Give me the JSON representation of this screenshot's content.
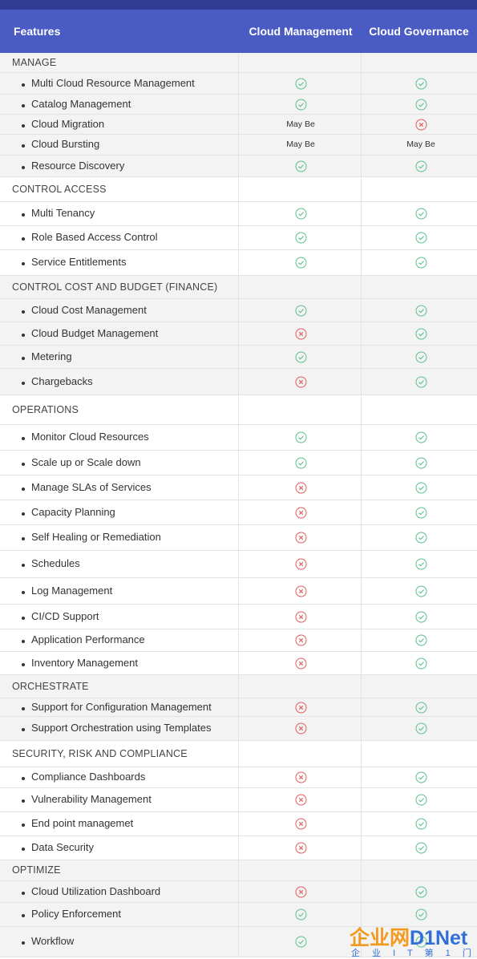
{
  "header": {
    "features": "Features",
    "cloud_management": "Cloud Management",
    "cloud_governance": "Cloud Governance"
  },
  "colors": {
    "header_bg": "#4a5bc3",
    "top_bar": "#2e3c91",
    "check": "#5cc08f",
    "cross": "#e05c5c",
    "section_bg": "#f3f3f3"
  },
  "rows": [
    {
      "type": "section",
      "label": "MANAGE"
    },
    {
      "type": "item",
      "label": "Multi Cloud Resource Management",
      "cm": "check",
      "cg": "check"
    },
    {
      "type": "item",
      "label": "Catalog Management",
      "cm": "check",
      "cg": "check"
    },
    {
      "type": "item",
      "label": "Cloud Migration",
      "cm": "May Be",
      "cg": "cross"
    },
    {
      "type": "item",
      "label": "Cloud Bursting",
      "cm": "May Be",
      "cg": "May Be"
    },
    {
      "type": "item",
      "label": "Resource Discovery",
      "cm": "check",
      "cg": "check"
    },
    {
      "type": "section",
      "label": "CONTROL ACCESS"
    },
    {
      "type": "item",
      "label": "Multi Tenancy",
      "cm": "check",
      "cg": "check"
    },
    {
      "type": "item",
      "label": "Role Based Access Control",
      "cm": "check",
      "cg": "check"
    },
    {
      "type": "item",
      "label": "Service Entitlements",
      "cm": "check",
      "cg": "check"
    },
    {
      "type": "section",
      "label": "CONTROL COST AND BUDGET (FINANCE)"
    },
    {
      "type": "item",
      "label": "Cloud Cost Management",
      "cm": "check",
      "cg": "check"
    },
    {
      "type": "item",
      "label": "Cloud Budget Management",
      "cm": "cross",
      "cg": "check"
    },
    {
      "type": "item",
      "label": "Metering",
      "cm": "check",
      "cg": "check"
    },
    {
      "type": "item",
      "label": "Chargebacks",
      "cm": "cross",
      "cg": "check"
    },
    {
      "type": "section",
      "label": "OPERATIONS"
    },
    {
      "type": "item",
      "label": "Monitor Cloud Resources",
      "cm": "check",
      "cg": "check"
    },
    {
      "type": "item",
      "label": "Scale up or Scale down",
      "cm": "check",
      "cg": "check"
    },
    {
      "type": "item",
      "label": "Manage SLAs of Services",
      "cm": "cross",
      "cg": "check"
    },
    {
      "type": "item",
      "label": "Capacity Planning",
      "cm": "cross",
      "cg": "check"
    },
    {
      "type": "item",
      "label": "Self Healing or Remediation",
      "cm": "cross",
      "cg": "check"
    },
    {
      "type": "item",
      "label": "Schedules",
      "cm": "cross",
      "cg": "check"
    },
    {
      "type": "item",
      "label": "Log Management",
      "cm": "cross",
      "cg": "check"
    },
    {
      "type": "item",
      "label": "CI/CD Support",
      "cm": "cross",
      "cg": "check"
    },
    {
      "type": "item",
      "label": "Application Performance",
      "cm": "cross",
      "cg": "check"
    },
    {
      "type": "item",
      "label": "Inventory Management",
      "cm": "cross",
      "cg": "check"
    },
    {
      "type": "section",
      "label": "ORCHESTRATE"
    },
    {
      "type": "item",
      "label": "Support for Configuration Management",
      "cm": "cross",
      "cg": "check"
    },
    {
      "type": "item",
      "label": "Support Orchestration using Templates",
      "cm": "cross",
      "cg": "check"
    },
    {
      "type": "section",
      "label": "SECURITY, RISK AND COMPLIANCE"
    },
    {
      "type": "item",
      "label": "Compliance Dashboards",
      "cm": "cross",
      "cg": "check"
    },
    {
      "type": "item",
      "label": "Vulnerability Management",
      "cm": "cross",
      "cg": "check"
    },
    {
      "type": "item",
      "label": "End point managemet",
      "cm": "cross",
      "cg": "check"
    },
    {
      "type": "item",
      "label": "Data Security",
      "cm": "cross",
      "cg": "check"
    },
    {
      "type": "section",
      "label": "OPTIMIZE"
    },
    {
      "type": "item",
      "label": "Cloud Utilization Dashboard",
      "cm": "cross",
      "cg": "check"
    },
    {
      "type": "item",
      "label": "Policy Enforcement",
      "cm": "check",
      "cg": "check"
    },
    {
      "type": "item",
      "label": "Workflow",
      "cm": "check",
      "cg": "check"
    }
  ],
  "watermark": {
    "logo_text": "企业网D1Net",
    "tagline": "企业IT第1门户"
  }
}
